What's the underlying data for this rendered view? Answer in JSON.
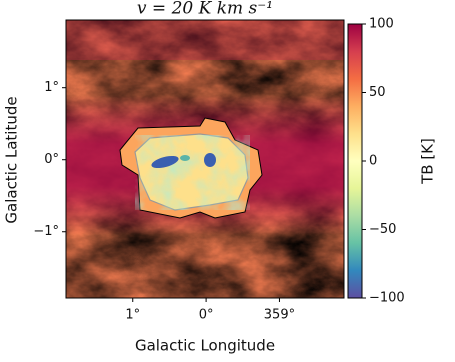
{
  "chart_data": {
    "type": "heatmap",
    "title": "v = 20 K km s⁻¹",
    "x_label": "Galactic Longitude",
    "y_label": "Galactic Latitude",
    "xlim": [
      1.91,
      -1.88
    ],
    "xticks": [
      {
        "value": 1,
        "label": "1°"
      },
      {
        "value": 0,
        "label": "0°"
      },
      {
        "value": -1,
        "label": "359°"
      }
    ],
    "ylim": [
      -1.92,
      1.94
    ],
    "yticks": [
      {
        "value": 1,
        "label": "1°"
      },
      {
        "value": 0,
        "label": "0°"
      },
      {
        "value": -1,
        "label": "−1°"
      }
    ],
    "colormap": "Spectral_r",
    "colorbar": {
      "label": "TB [K]",
      "clim": [
        -100,
        100
      ],
      "ticks": [
        {
          "value": -100,
          "label": "−100"
        },
        {
          "value": -50,
          "label": "−50"
        },
        0,
        50,
        100
      ]
    }
  }
}
